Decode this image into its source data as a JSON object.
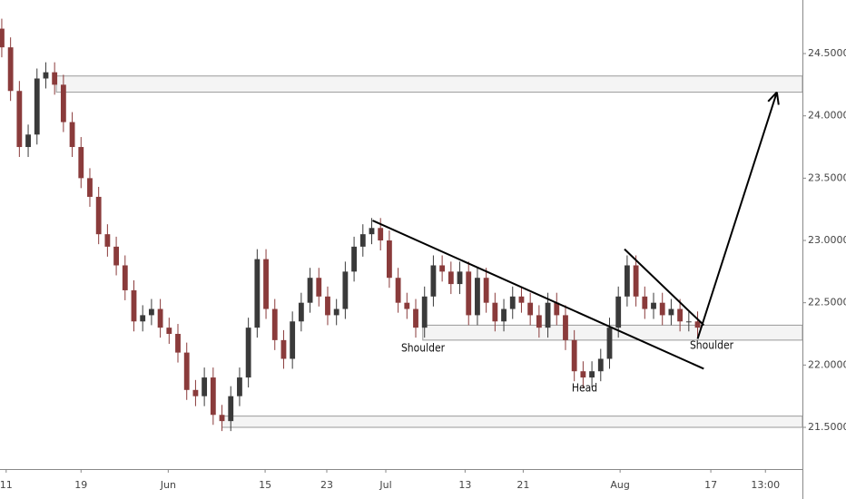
{
  "chart_data": {
    "type": "candlestick",
    "open": [
      24.7,
      24.55,
      24.2,
      23.75,
      23.85,
      24.3,
      24.35,
      24.25,
      23.95,
      23.75,
      23.5,
      23.35,
      23.05,
      22.95,
      22.8,
      22.6,
      22.35,
      22.4,
      22.45,
      22.3,
      22.25,
      22.1,
      21.8,
      21.75,
      21.9,
      21.6,
      21.55,
      21.75,
      21.9,
      22.3,
      22.85,
      22.45,
      22.2,
      22.05,
      22.35,
      22.5,
      22.7,
      22.55,
      22.4,
      22.45,
      22.75,
      22.95,
      23.05,
      23.1,
      23.0,
      22.7,
      22.5,
      22.45,
      22.3,
      22.55,
      22.8,
      22.75,
      22.65,
      22.75,
      22.4,
      22.7,
      22.5,
      22.35,
      22.45,
      22.55,
      22.5,
      22.4,
      22.3,
      22.5,
      22.4,
      22.2,
      21.95,
      21.9,
      21.95,
      22.05,
      22.3,
      22.55,
      22.8,
      22.55,
      22.45,
      22.5,
      22.4,
      22.45,
      22.35,
      22.35
    ],
    "high": [
      24.78,
      24.63,
      24.28,
      23.93,
      24.38,
      24.43,
      24.43,
      24.33,
      24.03,
      23.83,
      23.58,
      23.43,
      23.13,
      23.03,
      22.88,
      22.68,
      22.48,
      22.53,
      22.53,
      22.38,
      22.33,
      22.18,
      21.88,
      21.98,
      21.98,
      21.68,
      21.83,
      21.98,
      22.38,
      22.93,
      22.93,
      22.53,
      22.28,
      22.43,
      22.58,
      22.78,
      22.78,
      22.63,
      22.53,
      22.83,
      23.03,
      23.13,
      23.18,
      23.18,
      23.08,
      22.78,
      22.58,
      22.53,
      22.63,
      22.88,
      22.88,
      22.83,
      22.83,
      22.83,
      22.78,
      22.78,
      22.58,
      22.53,
      22.63,
      22.63,
      22.58,
      22.48,
      22.58,
      22.58,
      22.48,
      22.28,
      22.03,
      22.03,
      22.13,
      22.38,
      22.63,
      22.88,
      22.88,
      22.63,
      22.58,
      22.58,
      22.53,
      22.53,
      22.43,
      22.43
    ],
    "low": [
      24.47,
      24.12,
      23.67,
      23.67,
      23.77,
      24.22,
      24.17,
      23.87,
      23.67,
      23.42,
      23.27,
      22.97,
      22.87,
      22.72,
      22.52,
      22.27,
      22.27,
      22.32,
      22.22,
      22.17,
      22.02,
      21.72,
      21.67,
      21.67,
      21.52,
      21.47,
      21.47,
      21.67,
      21.82,
      22.22,
      22.37,
      22.12,
      21.97,
      21.97,
      22.27,
      22.42,
      22.47,
      22.32,
      22.32,
      22.37,
      22.67,
      22.87,
      22.97,
      22.92,
      22.62,
      22.42,
      22.37,
      22.22,
      22.22,
      22.47,
      22.67,
      22.57,
      22.57,
      22.32,
      22.32,
      22.42,
      22.27,
      22.27,
      22.37,
      22.42,
      22.32,
      22.22,
      22.22,
      22.32,
      22.12,
      21.87,
      21.82,
      21.82,
      21.87,
      21.97,
      22.22,
      22.47,
      22.47,
      22.37,
      22.37,
      22.32,
      22.32,
      22.27,
      22.27,
      22.22
    ],
    "close": [
      24.55,
      24.2,
      23.75,
      23.85,
      24.3,
      24.35,
      24.25,
      23.95,
      23.75,
      23.5,
      23.35,
      23.05,
      22.95,
      22.8,
      22.6,
      22.35,
      22.4,
      22.45,
      22.3,
      22.25,
      22.1,
      21.8,
      21.75,
      21.9,
      21.6,
      21.55,
      21.75,
      21.9,
      22.3,
      22.85,
      22.45,
      22.2,
      22.05,
      22.35,
      22.5,
      22.7,
      22.55,
      22.4,
      22.45,
      22.75,
      22.95,
      23.05,
      23.1,
      23.0,
      22.7,
      22.5,
      22.45,
      22.3,
      22.55,
      22.8,
      22.75,
      22.65,
      22.75,
      22.4,
      22.7,
      22.5,
      22.35,
      22.45,
      22.55,
      22.5,
      22.4,
      22.3,
      22.5,
      22.4,
      22.2,
      21.95,
      21.9,
      21.95,
      22.05,
      22.3,
      22.55,
      22.8,
      22.55,
      22.45,
      22.5,
      22.4,
      22.45,
      22.35,
      22.35,
      22.3
    ],
    "up_color": "#3a3a3a",
    "down_color": "#8a3b3b",
    "xlim": [
      -0.2,
      90.9
    ],
    "ylim": [
      21.165,
      24.93
    ],
    "xticks": [
      {
        "value": 0.5,
        "label": "11"
      },
      {
        "value": 9,
        "label": "19"
      },
      {
        "value": 18.9,
        "label": "Jun"
      },
      {
        "value": 29.9,
        "label": "15"
      },
      {
        "value": 36.9,
        "label": "23"
      },
      {
        "value": 43.6,
        "label": "Jul"
      },
      {
        "value": 52.6,
        "label": "13"
      },
      {
        "value": 59.2,
        "label": "21"
      },
      {
        "value": 70.2,
        "label": "Aug"
      },
      {
        "value": 80.5,
        "label": "17"
      },
      {
        "value": 86.7,
        "label": "13:00"
      }
    ],
    "yticks": [
      {
        "value": 21.5,
        "label": "21.50000"
      },
      {
        "value": 22,
        "label": "22.00000"
      },
      {
        "value": 22.5,
        "label": "22.50000"
      },
      {
        "value": 23,
        "label": "23.00000"
      },
      {
        "value": 23.5,
        "label": "23.50000"
      },
      {
        "value": 24,
        "label": "24.00000"
      },
      {
        "value": 24.5,
        "label": "24.50000"
      }
    ],
    "zones": [
      {
        "from": 6.2,
        "low": 24.19,
        "high": 24.32
      },
      {
        "from": 47.8,
        "low": 22.2,
        "high": 22.32
      },
      {
        "from": 25,
        "low": 21.5,
        "high": 21.59
      }
    ],
    "trendlines": [
      {
        "x": [
          42.1,
          79.7
        ],
        "y": [
          23.16,
          21.97
        ]
      },
      {
        "x": [
          70.7,
          79.7
        ],
        "y": [
          22.93,
          22.32
        ]
      }
    ],
    "arrow": {
      "x": [
        79,
        88
      ],
      "y": [
        22.21,
        24.19
      ]
    },
    "annotations": [
      "Shoulder",
      "Head",
      "Shoulder"
    ]
  }
}
